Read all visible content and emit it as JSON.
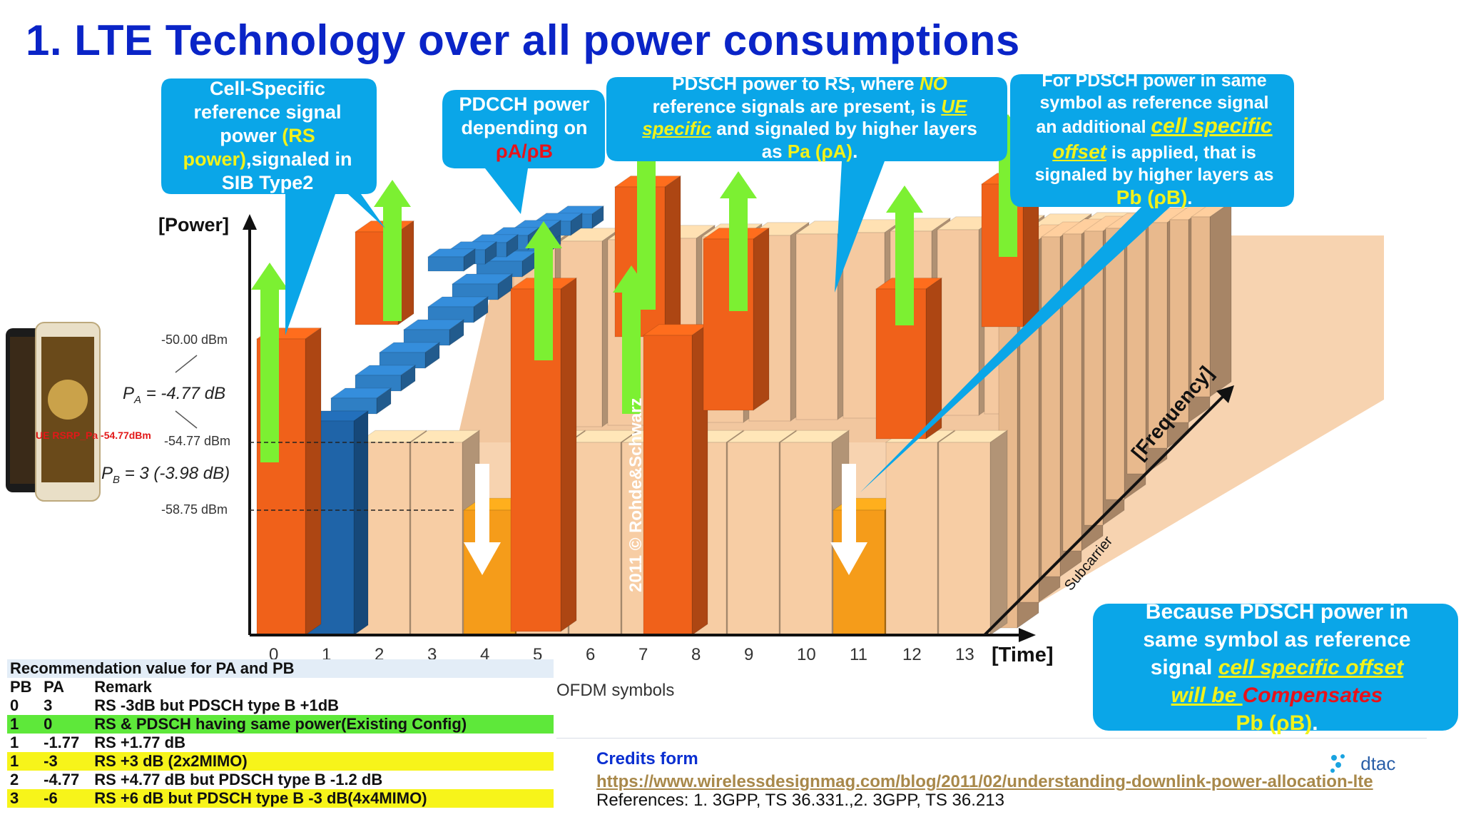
{
  "slide": {
    "title": "1. LTE Technology over all power consumptions"
  },
  "callouts": {
    "rs_power": {
      "line1": "Cell-Specific",
      "line2": "reference signal",
      "line3a": "power ",
      "line3b": "(RS",
      "line4a": "power)",
      "line4b": ",signaled in",
      "line5": "SIB Type2"
    },
    "pdcch": {
      "line1": "PDCCH power",
      "line2": "depending on",
      "line3": "ρA/ρB"
    },
    "pdsch_no_rs": {
      "line1a": "PDSCH power to RS, where ",
      "line1b": "NO",
      "line2a": "reference signals are present, is ",
      "line2b": "UE",
      "line3a": "specific",
      "line3b": " and signaled by higher layers",
      "line4a": "as ",
      "line4b": "Pa (ρA)",
      "line4c": "."
    },
    "pdsch_with_rs": {
      "line1": "For PDSCH power in same",
      "line2": "symbol as reference signal",
      "line3a": "an additional ",
      "line3b": "cell specific",
      "line4a": "offset",
      "line4b": " is applied, that is",
      "line5": "signaled by higher layers as",
      "line6a": "Pb (ρB)",
      "line6b": "."
    },
    "compensate": {
      "line1": "Because PDSCH power in",
      "line2": "same symbol as reference",
      "line3a": "signal  ",
      "line3b": "cell specific offset",
      "line4a": "will be ",
      "line4b": "Compensates",
      "line5a": "Pb (ρB)",
      "line5b": "."
    }
  },
  "axes": {
    "power_label": "[Power]",
    "time_label": "[Time]",
    "frequency_label": "[Frequency]",
    "subcarrier_label": "Subcarrier",
    "ofdm_label": "OFDM symbols",
    "symbols": [
      "0",
      "1",
      "2",
      "3",
      "4",
      "5",
      "6",
      "7",
      "8",
      "9",
      "10",
      "11",
      "12",
      "13"
    ],
    "level_high": "-50.00 dBm",
    "level_mid": "-54.77 dBm",
    "level_low": "-58.75 dBm",
    "pa_text": "P",
    "pa_sub": "A",
    "pa_value": " = -4.77 dB",
    "pb_text": "P",
    "pb_sub": "B",
    "pb_value": " = 3 (-3.98 dB)",
    "ue_rsrp": "UE RSRP_Pa  -54.77dBm",
    "watermark": "2011 © Rohde&Schwarz"
  },
  "table": {
    "title": "Recommendation value for PA and PB",
    "headers": [
      "PB",
      "PA",
      "Remark"
    ],
    "rows": [
      {
        "pb": "0",
        "pa": "3",
        "remark": "RS -3dB but PDSCH type B +1dB",
        "style": "plain"
      },
      {
        "pb": "1",
        "pa": "0",
        "remark": "RS & PDSCH having same power(Existing Config)",
        "style": "green"
      },
      {
        "pb": "1",
        "pa": "-1.77",
        "remark": "RS +1.77 dB",
        "style": "plain"
      },
      {
        "pb": "1",
        "pa": "-3",
        "remark": "RS +3 dB (2x2MIMO)",
        "style": "yellow"
      },
      {
        "pb": "2",
        "pa": "-4.77",
        "remark": "RS +4.77 dB but PDSCH type B -1.2 dB",
        "style": "plain"
      },
      {
        "pb": "3",
        "pa": "-6",
        "remark": "RS +6 dB but PDSCH type B -3 dB(4x4MIMO)",
        "style": "yellow"
      }
    ]
  },
  "footer": {
    "credits_label": "Credits form",
    "credits_url": "https://www.wirelessdesignmag.com/blog/2011/02/understanding-downlink-power-allocation-lte",
    "references": "References: 1. 3GPP, TS 36.331.,2. 3GPP, TS 36.213",
    "logo": "dtac"
  },
  "colors": {
    "title_blue": "#0a24c7",
    "callout_blue": "#0aa6e8",
    "rs_orange": "#f0611a",
    "pdcch_blue": "#2f7fc4",
    "pdsch_peach": "#f7cda4",
    "pdsch_b_orange": "#f59c1a",
    "arrow_green": "#7cf032"
  }
}
